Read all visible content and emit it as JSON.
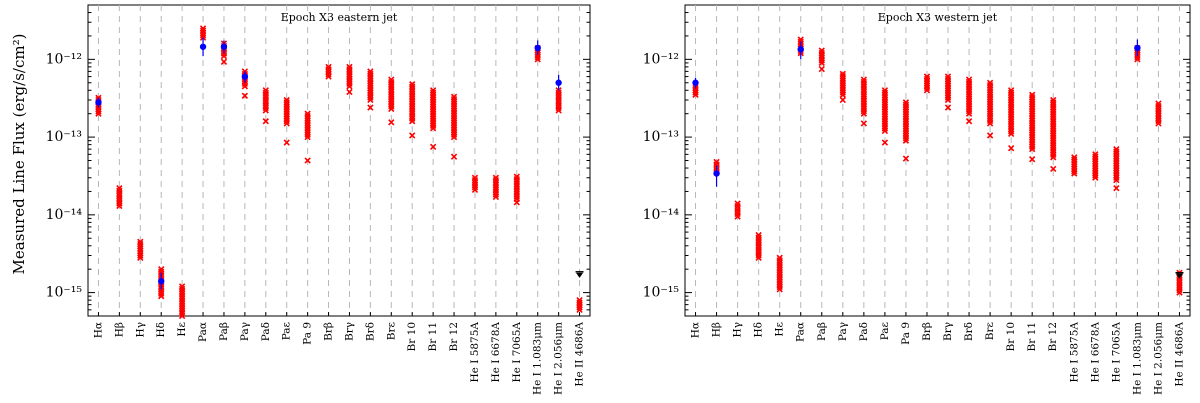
{
  "figure": {
    "ylabel": "Measured Line Flux (erg/s/cm²)",
    "marker_colors": {
      "model": "#ff0000",
      "observed": "#0000ff",
      "upper_limit": "#000000"
    }
  },
  "chart_data": [
    {
      "type": "scatter",
      "title": "Epoch X3 eastern jet",
      "xlabel": "",
      "ylabel": "Measured Line Flux (erg/s/cm²)",
      "yscale": "log",
      "ylim": [
        5e-16,
        5e-12
      ],
      "yticks": [
        {
          "value": 1e-15,
          "label": "10⁻¹⁵"
        },
        {
          "value": 1e-14,
          "label": "10⁻¹⁴"
        },
        {
          "value": 1e-13,
          "label": "10⁻¹³"
        },
        {
          "value": 1e-12,
          "label": "10⁻¹²"
        }
      ],
      "categories": [
        "Hα",
        "Hβ",
        "Hγ",
        "Hδ",
        "Hε",
        "Paα",
        "Paβ",
        "Paγ",
        "Paδ",
        "Paε",
        "Pa 9",
        "Brβ",
        "Brγ",
        "Brδ",
        "Brε",
        "Br 10",
        "Br 11",
        "Br 12",
        "He I 5875A",
        "He I 6678A",
        "He I 7065A",
        "He I 1.083μm",
        "He I 2.056μm",
        "He II 4686A"
      ],
      "model_range": [
        [
          2e-13,
          3.2e-13
        ],
        [
          1.3e-14,
          2.2e-14
        ],
        [
          2.8e-15,
          4.5e-15
        ],
        [
          9e-16,
          2e-15
        ],
        [
          5e-16,
          1.2e-15
        ],
        [
          1.9e-12,
          2.5e-12
        ],
        [
          1.1e-12,
          1.6e-12
        ],
        [
          4.5e-13,
          7e-13
        ],
        [
          2.2e-13,
          4e-13
        ],
        [
          1.5e-13,
          3e-13
        ],
        [
          1e-13,
          2e-13
        ],
        [
          6e-13,
          8e-13
        ],
        [
          4.5e-13,
          8e-13
        ],
        [
          3e-13,
          7e-13
        ],
        [
          2.3e-13,
          5.5e-13
        ],
        [
          1.6e-13,
          4.8e-13
        ],
        [
          1.3e-13,
          4e-13
        ],
        [
          1e-13,
          3.3e-13
        ],
        [
          2.1e-14,
          3e-14
        ],
        [
          1.7e-14,
          3e-14
        ],
        [
          1.6e-14,
          3.1e-14
        ],
        [
          1e-12,
          1.4e-12
        ],
        [
          2.2e-13,
          4e-13
        ],
        [
          6e-16,
          8e-16
        ]
      ],
      "model_outliers": [
        [],
        [],
        [],
        [],
        [],
        [],
        [
          9.3e-13
        ],
        [
          3.4e-13
        ],
        [
          1.6e-13
        ],
        [
          8.5e-14
        ],
        [
          5e-14
        ],
        [],
        [
          3.8e-13
        ],
        [
          2.4e-13
        ],
        [
          1.55e-13
        ],
        [
          1.05e-13
        ],
        [
          7.5e-14
        ],
        [
          5.6e-14
        ],
        [],
        [],
        [
          1.45e-14
        ],
        [],
        [],
        []
      ],
      "observed": [
        {
          "category": "Hα",
          "value": 2.8e-13,
          "err": [
            2.4e-13,
            3.2e-13
          ]
        },
        {
          "category": "Hδ",
          "value": 1.4e-15,
          "err": [
            1.1e-15,
            1.8e-15
          ]
        },
        {
          "category": "Paα",
          "value": 1.45e-12,
          "err": [
            1.1e-12,
            1.9e-12
          ]
        },
        {
          "category": "Paβ",
          "value": 1.45e-12,
          "err": [
            1.2e-12,
            1.75e-12
          ]
        },
        {
          "category": "Paγ",
          "value": 6e-13,
          "err": [
            5e-13,
            7e-13
          ]
        },
        {
          "category": "He I 1.083μm",
          "value": 1.4e-12,
          "err": [
            1.15e-12,
            1.75e-12
          ]
        },
        {
          "category": "He I 2.056μm",
          "value": 5e-13,
          "err": [
            4e-13,
            6.3e-13
          ]
        }
      ],
      "upper_limits": [
        {
          "category": "He II 4686A",
          "value": 1.85e-15
        }
      ]
    },
    {
      "type": "scatter",
      "title": "Epoch X3 western jet",
      "xlabel": "",
      "ylabel": "",
      "yscale": "log",
      "ylim": [
        5e-16,
        5e-12
      ],
      "yticks": [
        {
          "value": 1e-15,
          "label": "10⁻¹⁵"
        },
        {
          "value": 1e-14,
          "label": "10⁻¹⁴"
        },
        {
          "value": 1e-13,
          "label": "10⁻¹³"
        },
        {
          "value": 1e-12,
          "label": "10⁻¹²"
        }
      ],
      "categories": [
        "Hα",
        "Hβ",
        "Hγ",
        "Hδ",
        "Hε",
        "Paα",
        "Paβ",
        "Paγ",
        "Paδ",
        "Paε",
        "Pa 9",
        "Brβ",
        "Brγ",
        "Brδ",
        "Brε",
        "Br 10",
        "Br 11",
        "Br 12",
        "He I 5875A",
        "He I 6678A",
        "He I 7065A",
        "He I 1.083μm",
        "He I 2.056μm",
        "He II 4686A"
      ],
      "model_range": [
        [
          3.5e-13,
          4.6e-13
        ],
        [
          3.5e-14,
          4.8e-14
        ],
        [
          9.5e-15,
          1.4e-14
        ],
        [
          2.8e-15,
          5.5e-15
        ],
        [
          1.1e-15,
          2.8e-15
        ],
        [
          1.2e-12,
          1.8e-12
        ],
        [
          9e-13,
          1.3e-12
        ],
        [
          3.5e-13,
          6.5e-13
        ],
        [
          2e-13,
          5.5e-13
        ],
        [
          1.2e-13,
          4e-13
        ],
        [
          9e-14,
          2.8e-13
        ],
        [
          4e-13,
          6e-13
        ],
        [
          3e-13,
          6e-13
        ],
        [
          2e-13,
          5.5e-13
        ],
        [
          1.5e-13,
          5e-13
        ],
        [
          1.1e-13,
          4e-13
        ],
        [
          7e-14,
          3.5e-13
        ],
        [
          5.5e-14,
          3e-13
        ],
        [
          3.4e-14,
          5.5e-14
        ],
        [
          3e-14,
          6e-14
        ],
        [
          2.8e-14,
          7e-14
        ],
        [
          1e-12,
          1.4e-12
        ],
        [
          1.5e-13,
          2.7e-13
        ],
        [
          1e-15,
          1.8e-15
        ]
      ],
      "model_outliers": [
        [],
        [],
        [],
        [],
        [],
        [],
        [
          7.5e-13
        ],
        [
          3e-13
        ],
        [
          1.5e-13
        ],
        [
          8.5e-14
        ],
        [
          5.3e-14
        ],
        [],
        [
          2.4e-13
        ],
        [
          1.6e-13
        ],
        [
          1.05e-13
        ],
        [
          7.2e-14
        ],
        [
          5.2e-14
        ],
        [
          3.9e-14
        ],
        [],
        [],
        [
          2.2e-14
        ],
        [],
        [],
        []
      ],
      "observed": [
        {
          "category": "Hα",
          "value": 5e-13,
          "err": [
            4.2e-13,
            5.8e-13
          ]
        },
        {
          "category": "Hβ",
          "value": 3.4e-14,
          "err": [
            2.3e-14,
            4.3e-14
          ]
        },
        {
          "category": "Paα",
          "value": 1.35e-12,
          "err": [
            1e-12,
            1.7e-12
          ]
        },
        {
          "category": "He I 1.083μm",
          "value": 1.4e-12,
          "err": [
            1.1e-12,
            1.8e-12
          ]
        }
      ],
      "upper_limits": [
        {
          "category": "He II 4686A",
          "value": 1.8e-15
        }
      ]
    }
  ]
}
